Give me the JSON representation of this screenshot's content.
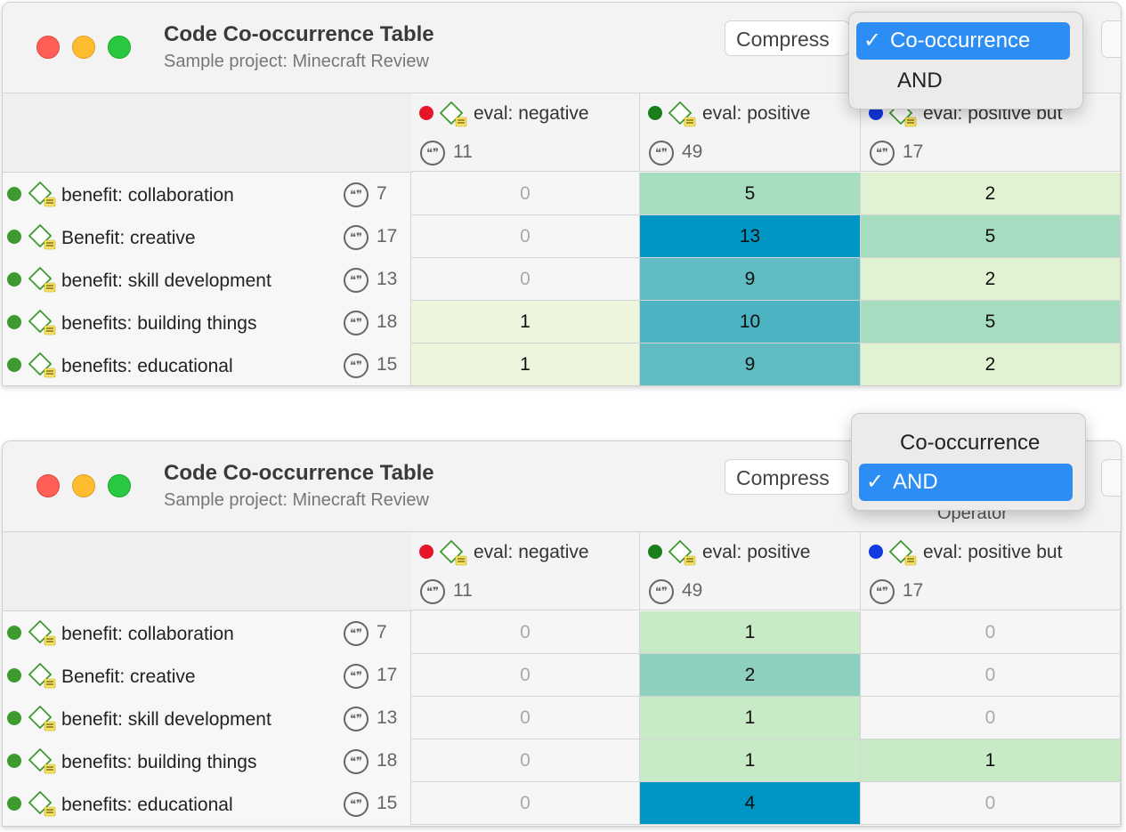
{
  "colors": {
    "red_code": "#e8142a",
    "green_code": "#1a7f1a",
    "blue_code": "#1339e0",
    "row_code": "#3e9a2f",
    "selected": "#2c8ef5"
  },
  "panels": [
    {
      "title": "Code Co-occurrence Table",
      "subtitle": "Sample project: Minecraft Review",
      "compress_label": "Compress",
      "operator_label": "",
      "dropdown": {
        "options": [
          {
            "label": "Co-occurrence",
            "selected": true
          },
          {
            "label": "AND",
            "selected": false
          }
        ]
      },
      "columns": [
        {
          "name": "eval: negative",
          "count": "11",
          "dot": "#e8142a"
        },
        {
          "name": "eval: positive",
          "count": "49",
          "dot": "#1a7f1a"
        },
        {
          "name": "eval: positive but",
          "count": "17",
          "dot": "#1339e0"
        }
      ],
      "rows": [
        {
          "name": "benefit: collaboration",
          "count": "7",
          "values": [
            "0",
            "5",
            "2"
          ],
          "colors": [
            "#f6f6f6",
            "#a8dec0",
            "#e0f2d2"
          ]
        },
        {
          "name": "Benefit: creative",
          "count": "17",
          "values": [
            "0",
            "13",
            "5"
          ],
          "colors": [
            "#f6f6f6",
            "#0096c4",
            "#a6dcc0"
          ]
        },
        {
          "name": "benefit: skill development",
          "count": "13",
          "values": [
            "0",
            "9",
            "2"
          ],
          "colors": [
            "#f6f6f6",
            "#60bcc2",
            "#e0f2d2"
          ]
        },
        {
          "name": "benefits: building things",
          "count": "18",
          "values": [
            "1",
            "10",
            "5"
          ],
          "colors": [
            "#edf6dc",
            "#4cb3c3",
            "#a6dcc0"
          ]
        },
        {
          "name": "benefits: educational",
          "count": "15",
          "values": [
            "1",
            "9",
            "2"
          ],
          "colors": [
            "#edf6dc",
            "#60bcc2",
            "#e0f2d2"
          ]
        }
      ]
    },
    {
      "title": "Code Co-occurrence Table",
      "subtitle": "Sample project: Minecraft Review",
      "compress_label": "Compress",
      "operator_label": "Operator",
      "dropdown": {
        "options": [
          {
            "label": "Co-occurrence",
            "selected": false
          },
          {
            "label": "AND",
            "selected": true
          }
        ]
      },
      "columns": [
        {
          "name": "eval: negative",
          "count": "11",
          "dot": "#e8142a"
        },
        {
          "name": "eval: positive",
          "count": "49",
          "dot": "#1a7f1a"
        },
        {
          "name": "eval: positive but",
          "count": "17",
          "dot": "#1339e0"
        }
      ],
      "rows": [
        {
          "name": "benefit: collaboration",
          "count": "7",
          "values": [
            "0",
            "1",
            "0"
          ],
          "colors": [
            "#f6f6f6",
            "#c9eac7",
            "#f6f6f6"
          ]
        },
        {
          "name": "Benefit: creative",
          "count": "17",
          "values": [
            "0",
            "2",
            "0"
          ],
          "colors": [
            "#f6f6f6",
            "#8ed0bf",
            "#f6f6f6"
          ]
        },
        {
          "name": "benefit: skill development",
          "count": "13",
          "values": [
            "0",
            "1",
            "0"
          ],
          "colors": [
            "#f6f6f6",
            "#c9eac7",
            "#f6f6f6"
          ]
        },
        {
          "name": "benefits: building things",
          "count": "18",
          "values": [
            "0",
            "1",
            "1"
          ],
          "colors": [
            "#f6f6f6",
            "#c9eac7",
            "#c9eac7"
          ]
        },
        {
          "name": "benefits: educational",
          "count": "15",
          "values": [
            "0",
            "4",
            "0"
          ],
          "colors": [
            "#f6f6f6",
            "#0096c4",
            "#f6f6f6"
          ]
        }
      ]
    }
  ]
}
